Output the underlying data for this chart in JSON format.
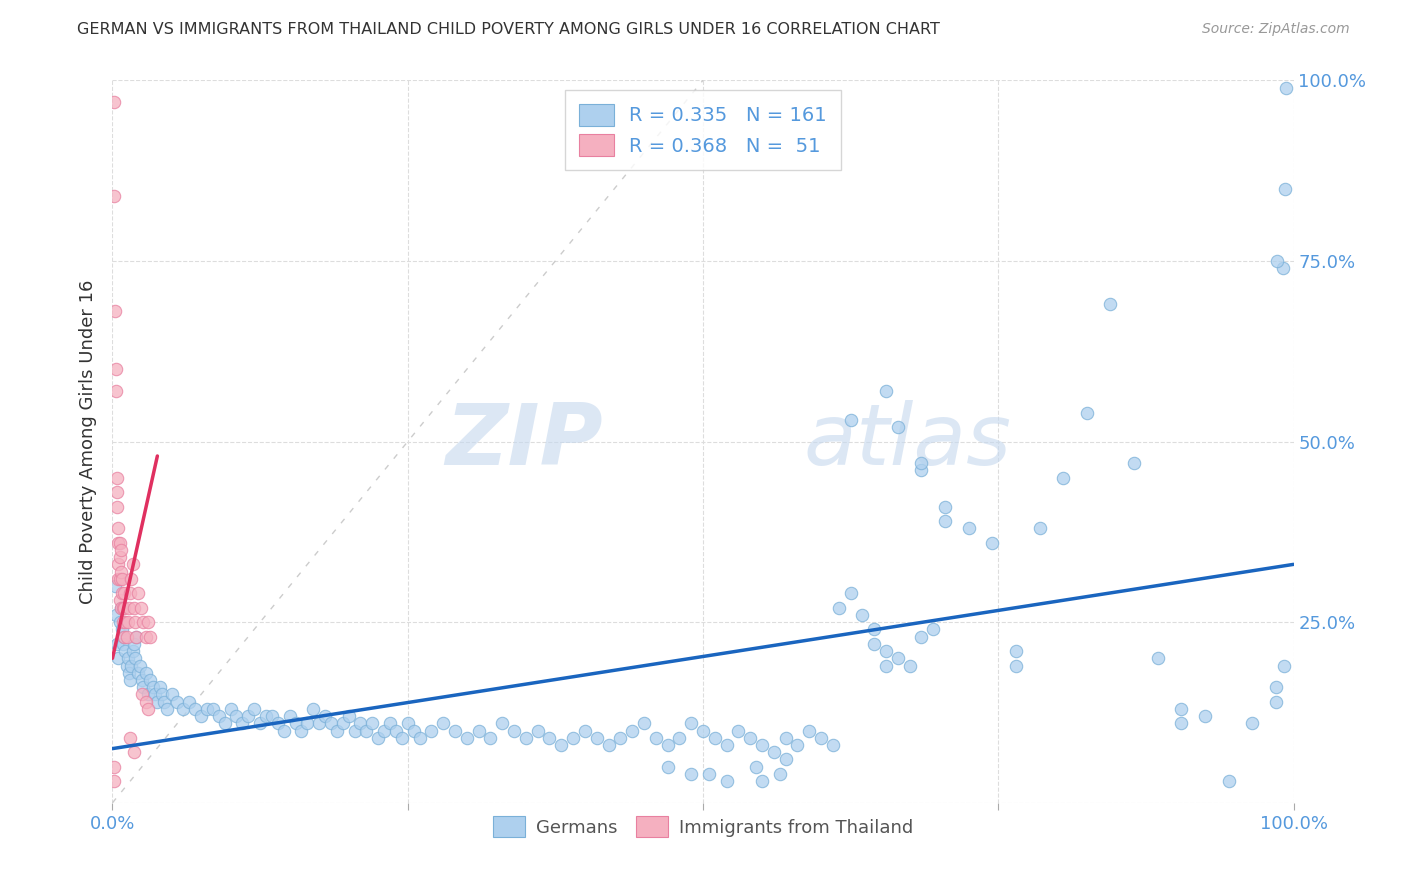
{
  "title": "GERMAN VS IMMIGRANTS FROM THAILAND CHILD POVERTY AMONG GIRLS UNDER 16 CORRELATION CHART",
  "source": "Source: ZipAtlas.com",
  "ylabel": "Child Poverty Among Girls Under 16",
  "xlim": [
    0,
    1
  ],
  "ylim": [
    0,
    1
  ],
  "xticks": [
    0.0,
    0.25,
    0.5,
    0.75,
    1.0
  ],
  "xticklabels": [
    "0.0%",
    "",
    "",
    "",
    "100.0%"
  ],
  "yticks_right": [
    0.0,
    0.25,
    0.5,
    0.75,
    1.0
  ],
  "yticklabels_right": [
    "",
    "25.0%",
    "50.0%",
    "75.0%",
    "100.0%"
  ],
  "watermark_zip": "ZIP",
  "watermark_atlas": "atlas",
  "legend_entries": [
    {
      "label": "Germans",
      "color": "#aed0ee",
      "edge": "#7ab0d8",
      "R": "0.335",
      "N": "161"
    },
    {
      "label": "Immigrants from Thailand",
      "color": "#f5b0c0",
      "edge": "#e880a0",
      "R": "0.368",
      "N": " 51"
    }
  ],
  "german_scatter": [
    [
      0.002,
      0.3
    ],
    [
      0.003,
      0.26
    ],
    [
      0.004,
      0.22
    ],
    [
      0.005,
      0.2
    ],
    [
      0.006,
      0.25
    ],
    [
      0.007,
      0.27
    ],
    [
      0.008,
      0.24
    ],
    [
      0.009,
      0.22
    ],
    [
      0.01,
      0.23
    ],
    [
      0.011,
      0.21
    ],
    [
      0.012,
      0.19
    ],
    [
      0.013,
      0.2
    ],
    [
      0.014,
      0.18
    ],
    [
      0.015,
      0.17
    ],
    [
      0.016,
      0.19
    ],
    [
      0.017,
      0.21
    ],
    [
      0.018,
      0.22
    ],
    [
      0.019,
      0.2
    ],
    [
      0.02,
      0.23
    ],
    [
      0.022,
      0.18
    ],
    [
      0.023,
      0.19
    ],
    [
      0.025,
      0.17
    ],
    [
      0.026,
      0.16
    ],
    [
      0.028,
      0.18
    ],
    [
      0.03,
      0.15
    ],
    [
      0.032,
      0.17
    ],
    [
      0.034,
      0.16
    ],
    [
      0.036,
      0.15
    ],
    [
      0.038,
      0.14
    ],
    [
      0.04,
      0.16
    ],
    [
      0.042,
      0.15
    ],
    [
      0.044,
      0.14
    ],
    [
      0.046,
      0.13
    ],
    [
      0.05,
      0.15
    ],
    [
      0.055,
      0.14
    ],
    [
      0.06,
      0.13
    ],
    [
      0.065,
      0.14
    ],
    [
      0.07,
      0.13
    ],
    [
      0.075,
      0.12
    ],
    [
      0.08,
      0.13
    ],
    [
      0.085,
      0.13
    ],
    [
      0.09,
      0.12
    ],
    [
      0.095,
      0.11
    ],
    [
      0.1,
      0.13
    ],
    [
      0.105,
      0.12
    ],
    [
      0.11,
      0.11
    ],
    [
      0.115,
      0.12
    ],
    [
      0.12,
      0.13
    ],
    [
      0.125,
      0.11
    ],
    [
      0.13,
      0.12
    ],
    [
      0.135,
      0.12
    ],
    [
      0.14,
      0.11
    ],
    [
      0.145,
      0.1
    ],
    [
      0.15,
      0.12
    ],
    [
      0.155,
      0.11
    ],
    [
      0.16,
      0.1
    ],
    [
      0.165,
      0.11
    ],
    [
      0.17,
      0.13
    ],
    [
      0.175,
      0.11
    ],
    [
      0.18,
      0.12
    ],
    [
      0.185,
      0.11
    ],
    [
      0.19,
      0.1
    ],
    [
      0.195,
      0.11
    ],
    [
      0.2,
      0.12
    ],
    [
      0.205,
      0.1
    ],
    [
      0.21,
      0.11
    ],
    [
      0.215,
      0.1
    ],
    [
      0.22,
      0.11
    ],
    [
      0.225,
      0.09
    ],
    [
      0.23,
      0.1
    ],
    [
      0.235,
      0.11
    ],
    [
      0.24,
      0.1
    ],
    [
      0.245,
      0.09
    ],
    [
      0.25,
      0.11
    ],
    [
      0.255,
      0.1
    ],
    [
      0.26,
      0.09
    ],
    [
      0.27,
      0.1
    ],
    [
      0.28,
      0.11
    ],
    [
      0.29,
      0.1
    ],
    [
      0.3,
      0.09
    ],
    [
      0.31,
      0.1
    ],
    [
      0.32,
      0.09
    ],
    [
      0.33,
      0.11
    ],
    [
      0.34,
      0.1
    ],
    [
      0.35,
      0.09
    ],
    [
      0.36,
      0.1
    ],
    [
      0.37,
      0.09
    ],
    [
      0.38,
      0.08
    ],
    [
      0.39,
      0.09
    ],
    [
      0.4,
      0.1
    ],
    [
      0.41,
      0.09
    ],
    [
      0.42,
      0.08
    ],
    [
      0.43,
      0.09
    ],
    [
      0.44,
      0.1
    ],
    [
      0.45,
      0.11
    ],
    [
      0.46,
      0.09
    ],
    [
      0.47,
      0.08
    ],
    [
      0.48,
      0.09
    ],
    [
      0.49,
      0.11
    ],
    [
      0.5,
      0.1
    ],
    [
      0.51,
      0.09
    ],
    [
      0.52,
      0.08
    ],
    [
      0.53,
      0.1
    ],
    [
      0.54,
      0.09
    ],
    [
      0.55,
      0.08
    ],
    [
      0.56,
      0.07
    ],
    [
      0.57,
      0.09
    ],
    [
      0.58,
      0.08
    ],
    [
      0.59,
      0.1
    ],
    [
      0.6,
      0.09
    ],
    [
      0.61,
      0.08
    ],
    [
      0.505,
      0.04
    ],
    [
      0.52,
      0.03
    ],
    [
      0.545,
      0.05
    ],
    [
      0.565,
      0.04
    ],
    [
      0.47,
      0.05
    ],
    [
      0.49,
      0.04
    ],
    [
      0.55,
      0.03
    ],
    [
      0.57,
      0.06
    ],
    [
      0.615,
      0.27
    ],
    [
      0.625,
      0.29
    ],
    [
      0.635,
      0.26
    ],
    [
      0.645,
      0.24
    ],
    [
      0.645,
      0.22
    ],
    [
      0.655,
      0.19
    ],
    [
      0.655,
      0.21
    ],
    [
      0.665,
      0.2
    ],
    [
      0.675,
      0.19
    ],
    [
      0.685,
      0.23
    ],
    [
      0.695,
      0.24
    ],
    [
      0.625,
      0.53
    ],
    [
      0.655,
      0.57
    ],
    [
      0.665,
      0.52
    ],
    [
      0.685,
      0.46
    ],
    [
      0.685,
      0.47
    ],
    [
      0.705,
      0.41
    ],
    [
      0.705,
      0.39
    ],
    [
      0.725,
      0.38
    ],
    [
      0.745,
      0.36
    ],
    [
      0.765,
      0.19
    ],
    [
      0.765,
      0.21
    ],
    [
      0.785,
      0.38
    ],
    [
      0.805,
      0.45
    ],
    [
      0.825,
      0.54
    ],
    [
      0.845,
      0.69
    ],
    [
      0.865,
      0.47
    ],
    [
      0.885,
      0.2
    ],
    [
      0.905,
      0.11
    ],
    [
      0.905,
      0.13
    ],
    [
      0.925,
      0.12
    ],
    [
      0.945,
      0.03
    ],
    [
      0.965,
      0.11
    ],
    [
      0.985,
      0.14
    ],
    [
      0.985,
      0.16
    ],
    [
      0.992,
      0.19
    ],
    [
      0.993,
      0.85
    ],
    [
      0.994,
      0.99
    ],
    [
      0.991,
      0.74
    ],
    [
      0.986,
      0.75
    ]
  ],
  "thailand_scatter": [
    [
      0.001,
      0.97
    ],
    [
      0.001,
      0.84
    ],
    [
      0.002,
      0.68
    ],
    [
      0.003,
      0.6
    ],
    [
      0.003,
      0.57
    ],
    [
      0.004,
      0.45
    ],
    [
      0.004,
      0.43
    ],
    [
      0.004,
      0.41
    ],
    [
      0.005,
      0.38
    ],
    [
      0.005,
      0.36
    ],
    [
      0.005,
      0.33
    ],
    [
      0.005,
      0.31
    ],
    [
      0.006,
      0.36
    ],
    [
      0.006,
      0.34
    ],
    [
      0.006,
      0.31
    ],
    [
      0.006,
      0.28
    ],
    [
      0.007,
      0.35
    ],
    [
      0.007,
      0.32
    ],
    [
      0.007,
      0.27
    ],
    [
      0.008,
      0.31
    ],
    [
      0.008,
      0.29
    ],
    [
      0.009,
      0.27
    ],
    [
      0.009,
      0.25
    ],
    [
      0.01,
      0.29
    ],
    [
      0.01,
      0.27
    ],
    [
      0.01,
      0.23
    ],
    [
      0.011,
      0.25
    ],
    [
      0.012,
      0.23
    ],
    [
      0.013,
      0.25
    ],
    [
      0.014,
      0.27
    ],
    [
      0.015,
      0.29
    ],
    [
      0.016,
      0.31
    ],
    [
      0.017,
      0.33
    ],
    [
      0.018,
      0.27
    ],
    [
      0.019,
      0.25
    ],
    [
      0.02,
      0.23
    ],
    [
      0.022,
      0.29
    ],
    [
      0.024,
      0.27
    ],
    [
      0.026,
      0.25
    ],
    [
      0.028,
      0.23
    ],
    [
      0.03,
      0.25
    ],
    [
      0.032,
      0.23
    ],
    [
      0.001,
      0.03
    ],
    [
      0.001,
      0.05
    ],
    [
      0.015,
      0.09
    ],
    [
      0.018,
      0.07
    ],
    [
      0.025,
      0.15
    ],
    [
      0.028,
      0.14
    ],
    [
      0.03,
      0.13
    ]
  ],
  "german_line": {
    "x0": 0.0,
    "y0": 0.075,
    "x1": 1.0,
    "y1": 0.33,
    "color": "#1a65bf",
    "lw": 2.5
  },
  "thailand_line": {
    "x0": 0.0,
    "y0": 0.2,
    "x1": 0.038,
    "y1": 0.48,
    "color": "#e03060",
    "lw": 2.5
  },
  "diagonal_line": {
    "x0": 0.0,
    "y0": 0.0,
    "x1": 0.5,
    "y1": 1.0,
    "color": "#cccccc",
    "lw": 1.0
  },
  "scatter_size": 80,
  "background_color": "#ffffff",
  "grid_color": "#dddddd",
  "tick_color": "#5599dd",
  "label_color": "#333333"
}
